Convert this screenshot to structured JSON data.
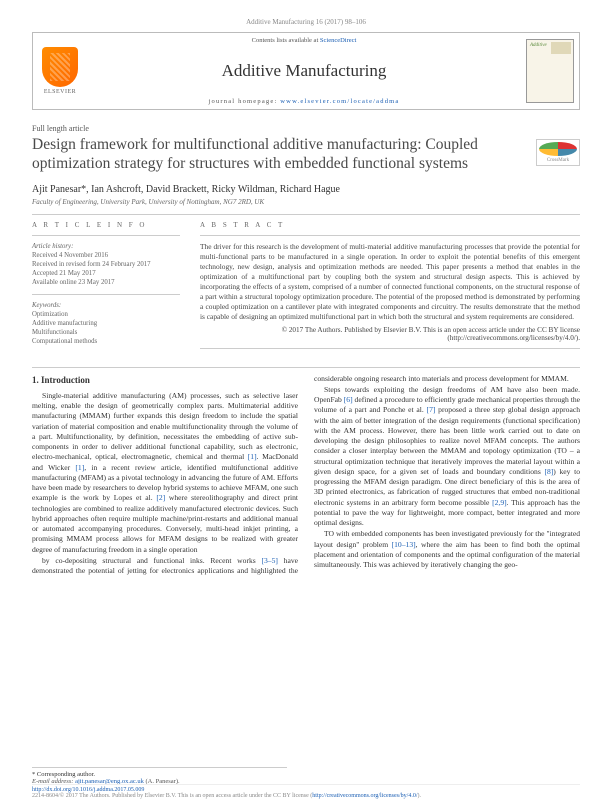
{
  "citation": "Additive Manufacturing 16 (2017) 98–106",
  "header": {
    "contents_prefix": "Contents lists available at ",
    "contents_link": "ScienceDirect",
    "journal": "Additive Manufacturing",
    "home_prefix": "journal homepage: ",
    "home_link": "www.elsevier.com/locate/addma",
    "publisher_name": "ELSEVIER"
  },
  "article_type": "Full length article",
  "title": "Design framework for multifunctional additive manufacturing: Coupled optimization strategy for structures with embedded functional systems",
  "crossmark_label": "CrossMark",
  "authors": "Ajit Panesar*, Ian Ashcroft, David Brackett, Ricky Wildman, Richard Hague",
  "affiliation": "Faculty of Engineering, University Park, University of Nottingham, NG7 2RD, UK",
  "info": {
    "heading": "A R T I C L E   I N F O",
    "history_label": "Article history:",
    "history": [
      "Received 4 November 2016",
      "Received in revised form 24 February 2017",
      "Accepted 21 May 2017",
      "Available online 23 May 2017"
    ],
    "keywords_label": "Keywords:",
    "keywords": [
      "Optimization",
      "Additive manufacturing",
      "Multifunctionals",
      "Computational methods"
    ]
  },
  "abstract": {
    "heading": "A B S T R A C T",
    "text": "The driver for this research is the development of multi-material additive manufacturing processes that provide the potential for multi-functional parts to be manufactured in a single operation. In order to exploit the potential benefits of this emergent technology, new design, analysis and optimization methods are needed. This paper presents a method that enables in the optimization of a multifunctional part by coupling both the system and structural design aspects. This is achieved by incorporating the effects of a system, comprised of a number of connected functional components, on the structural response of a part within a structural topology optimization procedure. The potential of the proposed method is demonstrated by performing a coupled optimization on a cantilever plate with integrated components and circuitry. The results demonstrate that the method is capable of designing an optimized multifunctional part in which both the structural and system requirements are considered.",
    "copyright": "© 2017 The Authors. Published by Elsevier B.V. This is an open access article under the CC BY license",
    "license_link": "(http://creativecommons.org/licenses/by/4.0/)."
  },
  "intro": {
    "heading": "1. Introduction",
    "col1_p1": "Single-material additive manufacturing (AM) processes, such as selective laser melting, enable the design of geometrically complex parts. Multimaterial additive manufacturing (MMAM) further expands this design freedom to include the spatial variation of material composition and enable multifunctionality through the volume of a part. Multifunctionality, by definition, necessitates the embedding of active sub-components in order to deliver additional functional capability, such as electronic, electro-mechanical, optical, electromagnetic, chemical and thermal [1]. MacDonald and Wicker [1], in a recent review article, identified multifunctional additive manufacturing (MFAM) as a pivotal technology in advancing the future of AM. Efforts have been made by researchers to develop hybrid systems to achieve MFAM, one such example is the work by Lopes et al. [2] where stereolithography and direct print technologies are combined to realize additively manufactured electronic devices. Such hybrid approaches often require multiple machine/print-restarts and additional manual or automated accompanying procedures. Conversely, multi-head inkjet printing, a promising MMAM process allows for MFAM designs to be realized with greater degree of manufacturing freedom in a single operation",
    "col2_p1": "by co-depositing structural and functional inks. Recent works [3–5] have demonstrated the potential of jetting for electronics applications and highlighted the considerable ongoing research into materials and process development for MMAM.",
    "col2_p2": "Steps towards exploiting the design freedoms of AM have also been made. OpenFab [6] defined a procedure to efficiently grade mechanical properties through the volume of a part and Ponche et al. [7] proposed a three step global design approach with the aim of better integration of the design requirements (functional specification) with the AM process. However, there has been little work carried out to date on developing the design philosophies to realize novel MFAM concepts. The authors consider a closer interplay between the MMAM and topology optimization (TO – a structural optimization technique that iteratively improves the material layout within a given design space, for a given set of loads and boundary conditions [8]) key to progressing the MFAM design paradigm. One direct beneficiary of this is the area of 3D printed electronics, as fabrication of rugged structures that embed non-traditional electronic systems in an arbitrary form become possible [2,9]. This approach has the potential to pave the way for lightweight, more compact, better integrated and more optimal designs.",
    "col2_p3": "TO with embedded components has been investigated previously for the \"integrated layout design\" problem [10–13], where the aim has been to find both the optimal placement and orientation of components and the optimal configuration of the material simultaneously. This was achieved by iteratively changing the geo-"
  },
  "footer": {
    "corr_label": "* Corresponding author.",
    "email_label": "E-mail address:",
    "email": "ajit.panesar@eng.ox.ac.uk",
    "email_name": "(A. Panesar).",
    "doi": "http://dx.doi.org/10.1016/j.addma.2017.05.009",
    "issn": "2214-8604/© 2017 The Authors. Published by Elsevier B.V. This is an open access article under the CC BY license (",
    "issn_link": "http://creativecommons.org/licenses/by/4.0/",
    "issn_close": ")."
  }
}
